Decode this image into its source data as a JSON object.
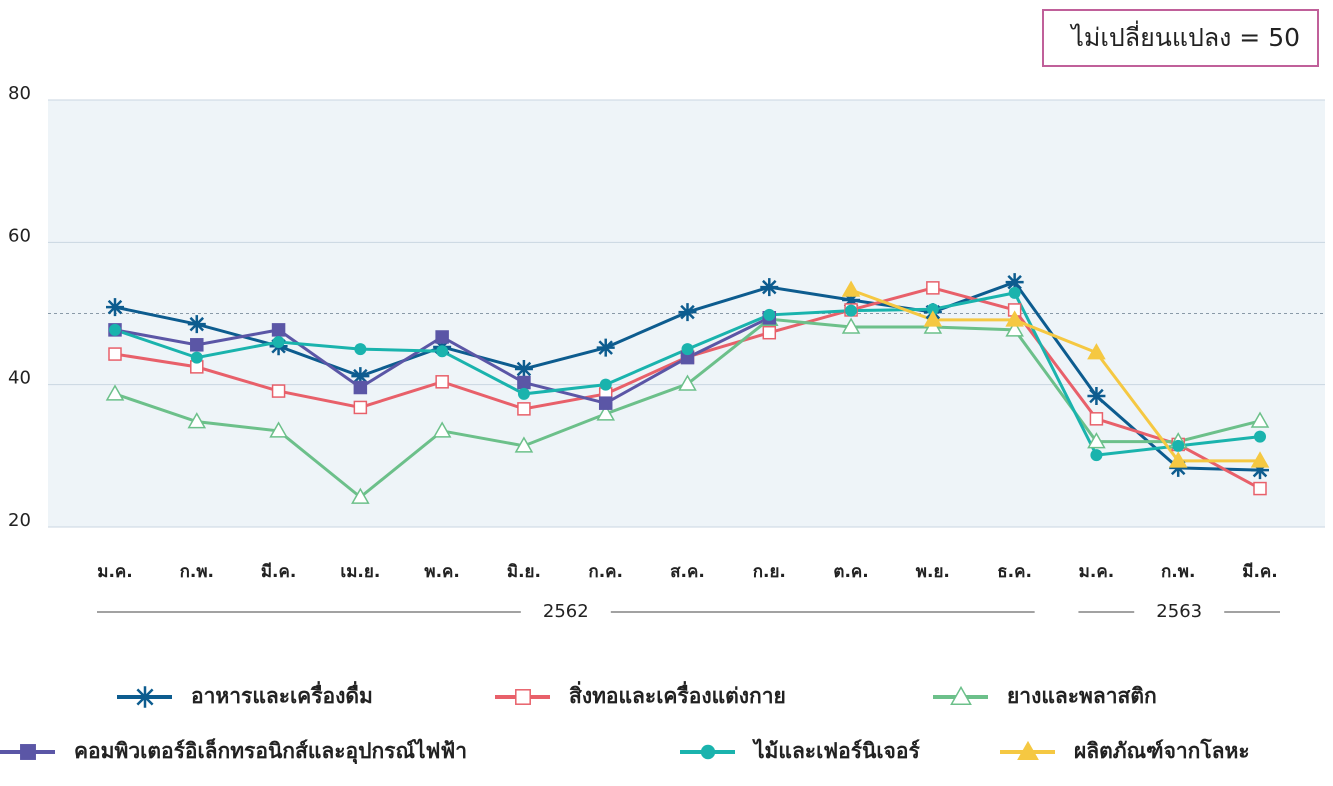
{
  "chart_data": {
    "type": "line",
    "annotation": "ไม่เปลี่ยนแปลง = 50",
    "reference_line": 50,
    "categories": [
      "ม.ค.",
      "ก.พ.",
      "มี.ค.",
      "เม.ย.",
      "พ.ค.",
      "มิ.ย.",
      "ก.ค.",
      "ส.ค.",
      "ก.ย.",
      "ต.ค.",
      "พ.ย.",
      "ธ.ค.",
      "ม.ค.",
      "ก.พ.",
      "มี.ค."
    ],
    "years": [
      "2562",
      "2563"
    ],
    "ylim": [
      20,
      80
    ],
    "yticks": [
      20,
      40,
      60,
      80
    ],
    "grid": true,
    "series": [
      {
        "name": "อาหารและเครื่องดื่ม",
        "color": "#0d5c8f",
        "marker": "asterisk",
        "values": [
          50.9,
          48.5,
          45.4,
          41.2,
          45.3,
          42.2,
          45.2,
          50.2,
          53.7,
          51.9,
          50.2,
          54.4,
          38.4,
          28.3,
          28.0
        ]
      },
      {
        "name": "สิ่งทอและเครื่องแต่งกาย",
        "color": "#e8606a",
        "marker": "open-square",
        "values": [
          44.3,
          42.5,
          39.1,
          36.8,
          40.4,
          36.6,
          38.7,
          43.9,
          47.3,
          50.5,
          53.6,
          50.5,
          35.2,
          31.6,
          25.4
        ]
      },
      {
        "name": "ยางและพลาสติก",
        "color": "#6cc08a",
        "marker": "open-triangle",
        "values": [
          38.7,
          34.8,
          33.5,
          24.2,
          33.5,
          31.4,
          35.9,
          40.1,
          49.2,
          48.1,
          48.1,
          47.7,
          32.0,
          32.0,
          34.9
        ]
      },
      {
        "name": "คอมพิวเตอร์อิเล็กทรอนิกส์และอุปกรณ์ไฟฟ้า",
        "color": "#5b56a6",
        "marker": "square",
        "values": [
          47.7,
          45.6,
          47.7,
          39.6,
          46.7,
          40.3,
          37.4,
          43.8,
          49.4,
          null,
          null,
          null,
          null,
          null,
          null
        ]
      },
      {
        "name": "ไม้และเฟอร์นิเจอร์",
        "color": "#1ab3ad",
        "marker": "circle",
        "values": [
          47.7,
          43.8,
          46.0,
          45.0,
          44.7,
          38.7,
          40.0,
          45.0,
          49.8,
          50.4,
          50.6,
          52.9,
          30.1,
          31.4,
          32.7
        ]
      },
      {
        "name": "ผลิตภัณฑ์จากโลหะ",
        "color": "#f5c842",
        "marker": "triangle",
        "values": [
          null,
          null,
          null,
          null,
          null,
          null,
          null,
          null,
          null,
          53.3,
          49.1,
          49.1,
          44.5,
          29.3,
          29.3
        ]
      }
    ]
  }
}
